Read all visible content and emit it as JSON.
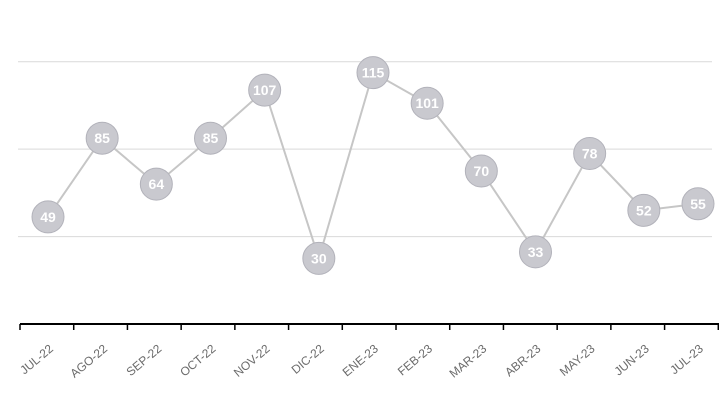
{
  "chart_data": {
    "type": "line",
    "categories": [
      "JUL-22",
      "AGO-22",
      "SEP-22",
      "OCT-22",
      "NOV-22",
      "DIC-22",
      "ENE-23",
      "FEB-23",
      "MAR-23",
      "ABR-23",
      "MAY-23",
      "JUN-23",
      "JUL-23"
    ],
    "series": [
      {
        "values": [
          49,
          85,
          64,
          85,
          107,
          30,
          115,
          101,
          70,
          33,
          78,
          52,
          55
        ]
      }
    ],
    "title": "",
    "xlabel": "",
    "ylabel": "",
    "ylim": [
      0,
      140
    ],
    "grid": true,
    "legend": "none",
    "colors": {
      "line": "#c6c6c6",
      "marker": "#c9c9cf",
      "label": "#ffffff",
      "axis": "#000000"
    }
  }
}
